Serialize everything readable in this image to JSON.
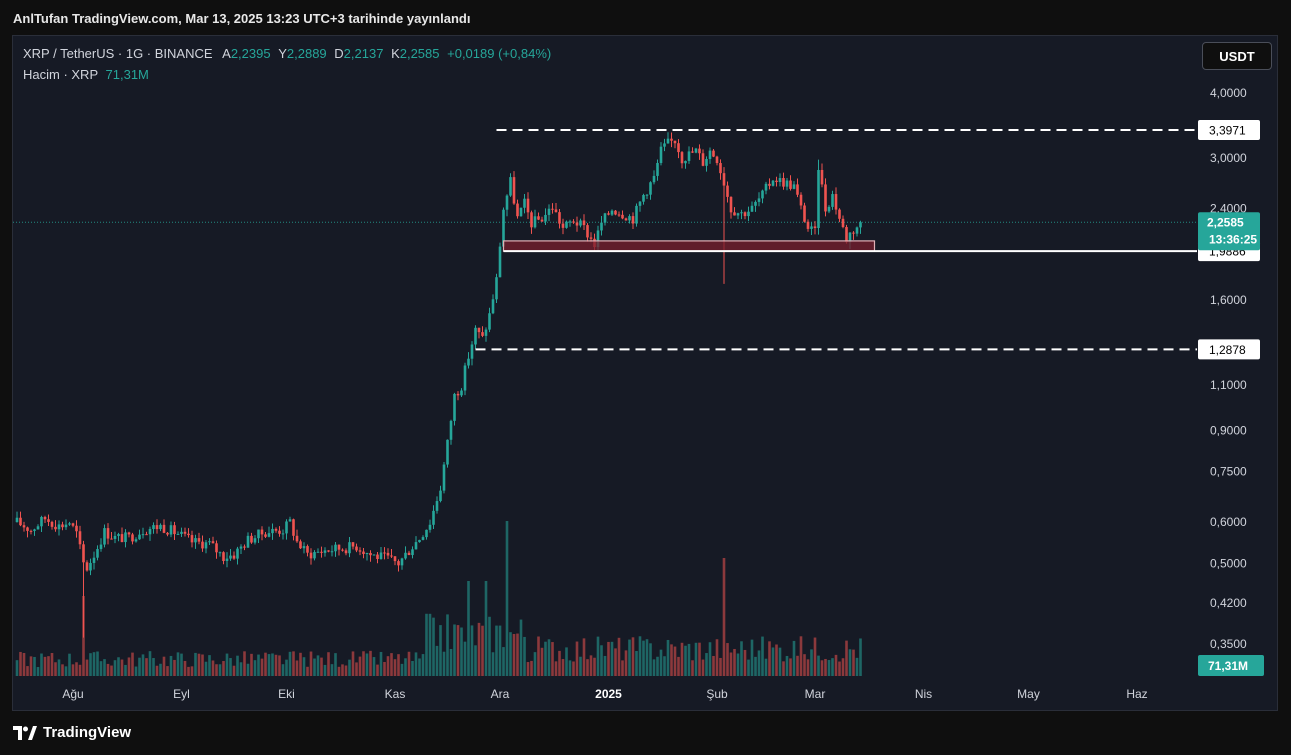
{
  "caption": "AnlTufan TradingView.com, Mar 13, 2025 13:23 UTC+3 tarihinde yayınlandı",
  "legend": {
    "symbol": "XRP / TetherUS · 1G · BINANCE",
    "open_label": "A",
    "open": "2,2395",
    "high_label": "Y",
    "high": "2,2889",
    "low_label": "D",
    "low": "2,2137",
    "close_label": "K",
    "close": "2,2585",
    "change": "+0,0189 (+0,84%)",
    "volume_label": "Hacim · XRP",
    "volume": "71,31M"
  },
  "currency_button": "USDT",
  "price_tag": {
    "price": "2,2585",
    "countdown": "13:36:25",
    "color": "#26a69a"
  },
  "volume_tag": "71,31M",
  "footer_brand": "TradingView",
  "chart_data": {
    "type": "candlestick",
    "y_scale": "log",
    "y_ticks": [
      {
        "value": 4.0,
        "label": "4,0000"
      },
      {
        "value": 3.0,
        "label": "3,0000"
      },
      {
        "value": 2.4,
        "label": "2,4000"
      },
      {
        "value": 1.6,
        "label": "1,6000"
      },
      {
        "value": 1.1,
        "label": "1,1000"
      },
      {
        "value": 0.9,
        "label": "0,9000"
      },
      {
        "value": 0.75,
        "label": "0,7500"
      },
      {
        "value": 0.6,
        "label": "0,6000"
      },
      {
        "value": 0.5,
        "label": "0,5000"
      },
      {
        "value": 0.42,
        "label": "0,4200"
      },
      {
        "value": 0.35,
        "label": "0,3500"
      }
    ],
    "x_ticks": [
      {
        "label": "Ağu",
        "day": 0,
        "bold": false
      },
      {
        "label": "Eyl",
        "day": 31,
        "bold": false
      },
      {
        "label": "Eki",
        "day": 61,
        "bold": false
      },
      {
        "label": "Kas",
        "day": 92,
        "bold": false
      },
      {
        "label": "Ara",
        "day": 122,
        "bold": false
      },
      {
        "label": "2025",
        "day": 153,
        "bold": true
      },
      {
        "label": "Şub",
        "day": 184,
        "bold": false
      },
      {
        "label": "Mar",
        "day": 212,
        "bold": false
      },
      {
        "label": "Nis",
        "day": 243,
        "bold": false
      },
      {
        "label": "May",
        "day": 273,
        "bold": false
      },
      {
        "label": "Haz",
        "day": 304,
        "bold": false
      }
    ],
    "levels": [
      {
        "value": 3.3971,
        "label": "3,3971",
        "style": "dashed"
      },
      {
        "value": 1.9886,
        "label": "1,9886",
        "style": "solid"
      },
      {
        "value": 1.2878,
        "label": "1,2878",
        "style": "dashed"
      }
    ],
    "zone": {
      "low": 1.9886,
      "high": 2.08
    },
    "current_price": 2.2585,
    "colors": {
      "up": "#26a69a",
      "down": "#ef5350"
    },
    "keypoints": [
      [
        -16,
        0.6
      ],
      [
        -12,
        0.58
      ],
      [
        -8,
        0.61
      ],
      [
        -4,
        0.59
      ],
      [
        -1,
        0.6
      ],
      [
        1,
        0.57
      ],
      [
        3,
        0.5
      ],
      [
        4,
        0.49
      ],
      [
        6,
        0.52
      ],
      [
        9,
        0.575
      ],
      [
        12,
        0.56
      ],
      [
        16,
        0.56
      ],
      [
        20,
        0.58
      ],
      [
        25,
        0.59
      ],
      [
        30,
        0.57
      ],
      [
        34,
        0.55
      ],
      [
        39,
        0.545
      ],
      [
        43,
        0.515
      ],
      [
        46,
        0.52
      ],
      [
        50,
        0.555
      ],
      [
        55,
        0.575
      ],
      [
        60,
        0.58
      ],
      [
        62,
        0.6
      ],
      [
        64,
        0.55
      ],
      [
        67,
        0.52
      ],
      [
        72,
        0.53
      ],
      [
        77,
        0.535
      ],
      [
        81,
        0.54
      ],
      [
        85,
        0.52
      ],
      [
        90,
        0.51
      ],
      [
        93,
        0.5
      ],
      [
        96,
        0.53
      ],
      [
        99,
        0.56
      ],
      [
        102,
        0.6
      ],
      [
        105,
        0.7
      ],
      [
        107,
        0.85
      ],
      [
        109,
        1.05
      ],
      [
        111,
        1.1
      ],
      [
        113,
        1.25
      ],
      [
        115,
        1.4
      ],
      [
        117,
        1.35
      ],
      [
        119,
        1.5
      ],
      [
        121,
        1.75
      ],
      [
        123,
        2.4
      ],
      [
        125,
        2.7
      ],
      [
        127,
        2.3
      ],
      [
        129,
        2.45
      ],
      [
        131,
        2.25
      ],
      [
        134,
        2.3
      ],
      [
        137,
        2.42
      ],
      [
        140,
        2.2
      ],
      [
        143,
        2.28
      ],
      [
        146,
        2.2
      ],
      [
        149,
        2.05
      ],
      [
        151,
        2.25
      ],
      [
        154,
        2.4
      ],
      [
        157,
        2.35
      ],
      [
        160,
        2.3
      ],
      [
        163,
        2.55
      ],
      [
        166,
        2.75
      ],
      [
        168,
        3.1
      ],
      [
        170,
        3.2
      ],
      [
        172,
        3.25
      ],
      [
        174,
        3.0
      ],
      [
        176,
        3.05
      ],
      [
        178,
        3.1
      ],
      [
        180,
        2.95
      ],
      [
        182,
        3.1
      ],
      [
        184,
        3.0
      ],
      [
        186,
        2.7
      ],
      [
        188,
        2.4
      ],
      [
        191,
        2.35
      ],
      [
        194,
        2.4
      ],
      [
        197,
        2.55
      ],
      [
        200,
        2.75
      ],
      [
        203,
        2.7
      ],
      [
        206,
        2.65
      ],
      [
        208,
        2.4
      ],
      [
        210,
        2.2
      ],
      [
        212,
        2.15
      ],
      [
        213,
        2.9
      ],
      [
        215,
        2.4
      ],
      [
        217,
        2.55
      ],
      [
        219,
        2.3
      ],
      [
        221,
        2.1
      ],
      [
        222,
        2.15
      ],
      [
        224,
        2.22
      ],
      [
        225,
        2.2585
      ]
    ]
  }
}
